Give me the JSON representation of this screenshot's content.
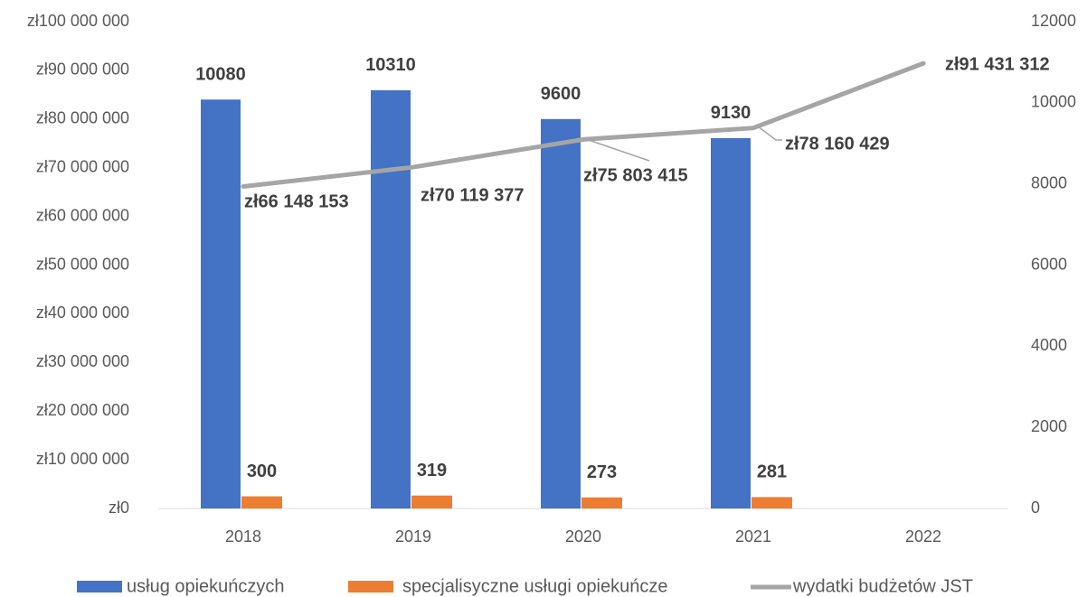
{
  "chart_data": {
    "type": "bar_line",
    "categories": [
      "2018",
      "2019",
      "2020",
      "2021",
      "2022"
    ],
    "series": [
      {
        "name": "usług opiekuńczych",
        "color": "#4472c4",
        "type": "bar",
        "axis": "y2",
        "values": [
          10080,
          10310,
          9600,
          9130,
          null
        ]
      },
      {
        "name": "specjalisyczne usługi opiekuńcze",
        "color": "#ed7d31",
        "type": "bar",
        "axis": "y2",
        "values": [
          300,
          319,
          273,
          281,
          null
        ]
      },
      {
        "name": "wydatki budżetów JST",
        "color": "#a5a5a5",
        "type": "line",
        "values": [
          66148153,
          70119377,
          75803415,
          78160429,
          91431312
        ],
        "value_labels": [
          "zł66 148 153",
          "zł70 119 377",
          "zł75 803 415",
          "zł78 160 429",
          "zł91 431 312"
        ]
      }
    ],
    "ylim": [
      0,
      100000000
    ],
    "yticks": [
      {
        "value": 0,
        "label": "zł0"
      },
      {
        "value": 10000000,
        "label": "zł10 000 000"
      },
      {
        "value": 20000000,
        "label": "zł20 000 000"
      },
      {
        "value": 30000000,
        "label": "zł30 000 000"
      },
      {
        "value": 40000000,
        "label": "zł40 000 000"
      },
      {
        "value": 50000000,
        "label": "zł50 000 000"
      },
      {
        "value": 60000000,
        "label": "zł60 000 000"
      },
      {
        "value": 70000000,
        "label": "zł70 000 000"
      },
      {
        "value": 80000000,
        "label": "zł80 000 000"
      },
      {
        "value": 90000000,
        "label": "zł90 000 000"
      },
      {
        "value": 100000000,
        "label": "zł100 000 000"
      }
    ],
    "y2lim": [
      0,
      12000
    ],
    "y2ticks": [
      0,
      2000,
      4000,
      6000,
      8000,
      10000,
      12000
    ],
    "legend": "bottom"
  }
}
